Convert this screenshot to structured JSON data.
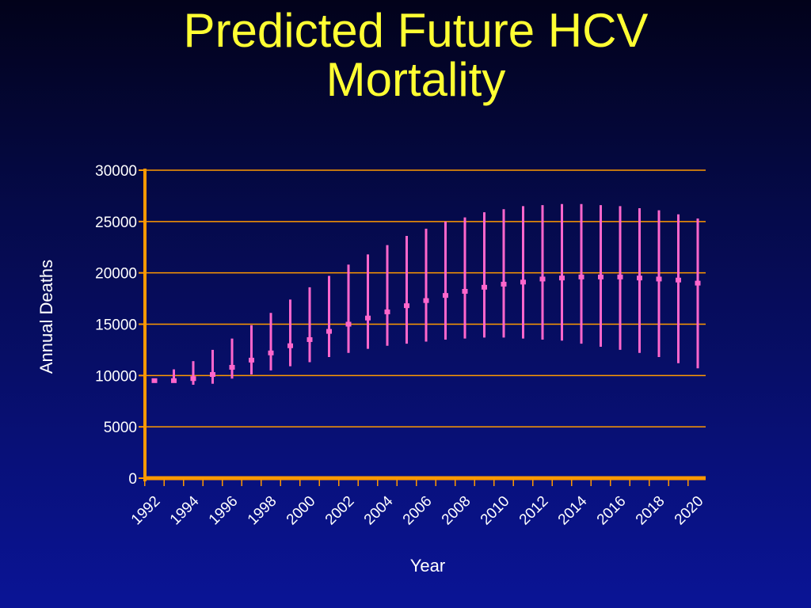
{
  "slide": {
    "title_line1": "Predicted Future HCV",
    "title_line2": "Mortality"
  },
  "colors": {
    "title": "#ffff33",
    "axis": "#ff9900",
    "gridline": "#ff9900",
    "series": "#ff66cc",
    "text": "#ffffff"
  },
  "chart_data": {
    "type": "line",
    "title": "",
    "xlabel": "Year",
    "ylabel": "Annual Deaths",
    "ylim": [
      0,
      30000
    ],
    "yticks": [
      0,
      5000,
      10000,
      15000,
      20000,
      25000,
      30000
    ],
    "x_tick_labels": [
      "1992",
      "1994",
      "1996",
      "1998",
      "2000",
      "2002",
      "2004",
      "2006",
      "2008",
      "2010",
      "2012",
      "2014",
      "2016",
      "2018",
      "2020"
    ],
    "grid": true,
    "series": [
      {
        "x": [
          1992,
          1993,
          1994,
          1995,
          1996,
          1997,
          1998,
          1999,
          2000,
          2001,
          2002,
          2003,
          2004,
          2005,
          2006,
          2007,
          2008,
          2009,
          2010,
          2011,
          2012,
          2013,
          2014,
          2015,
          2016,
          2017,
          2018,
          2019,
          2020
        ],
        "values": [
          9500,
          9500,
          9700,
          10100,
          10800,
          11500,
          12200,
          12900,
          13500,
          14300,
          15000,
          15600,
          16200,
          16800,
          17300,
          17800,
          18200,
          18600,
          18900,
          19100,
          19400,
          19500,
          19600,
          19600,
          19600,
          19500,
          19400,
          19300,
          19000
        ],
        "lower": [
          9500,
          9300,
          9100,
          9200,
          9700,
          10100,
          10500,
          10900,
          11300,
          11800,
          12200,
          12600,
          12900,
          13100,
          13300,
          13500,
          13600,
          13700,
          13700,
          13600,
          13500,
          13400,
          13100,
          12800,
          12500,
          12200,
          11800,
          11200,
          10700
        ],
        "upper": [
          9500,
          10600,
          11400,
          12500,
          13600,
          14900,
          16100,
          17400,
          18600,
          19700,
          20800,
          21800,
          22700,
          23600,
          24300,
          25000,
          25400,
          25900,
          26200,
          26500,
          26600,
          26700,
          26700,
          26600,
          26500,
          26300,
          26100,
          25700,
          25300
        ]
      }
    ]
  }
}
